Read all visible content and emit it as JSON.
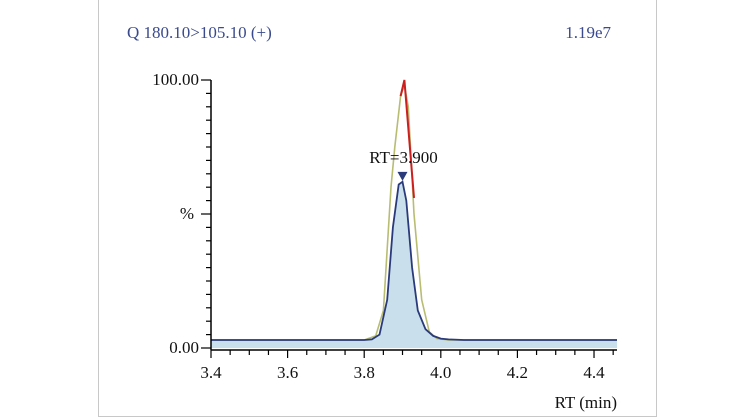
{
  "chart_data": {
    "type": "line",
    "header_left": "Q 180.10>105.10 (+)",
    "header_right": "1.19e7",
    "ylabel": "%",
    "xlabel": "RT (min)",
    "xlim": [
      3.4,
      4.46
    ],
    "ylim": [
      0,
      100
    ],
    "x_ticks": [
      "3.4",
      "3.6",
      "3.8",
      "4.0",
      "4.2",
      "4.4"
    ],
    "x_tick_values": [
      3.4,
      3.6,
      3.8,
      4.0,
      4.2,
      4.4
    ],
    "y_ticks": [
      "0.00",
      "100.00"
    ],
    "y_tick_values": [
      0,
      100
    ],
    "annotation": "RT=3.900",
    "peak_rt": 3.9,
    "colors": {
      "trace": "#2a3a7a",
      "fill": "#c9e0ec",
      "smooth": "#b8bd72",
      "peak_edge": "#cc1f1f",
      "axis": "#000000"
    },
    "series": [
      {
        "role": "detected-trace",
        "x": [
          3.4,
          3.8,
          3.82,
          3.84,
          3.86,
          3.875,
          3.89,
          3.9,
          3.91,
          3.925,
          3.94,
          3.96,
          3.98,
          4.0,
          4.02,
          4.06,
          4.46
        ],
        "y": [
          3,
          3,
          3.2,
          5,
          18,
          45,
          61,
          62,
          55,
          30,
          14,
          7,
          4.5,
          3.5,
          3.2,
          3,
          3
        ]
      },
      {
        "role": "smoothed-trace",
        "x": [
          3.4,
          3.8,
          3.83,
          3.85,
          3.87,
          3.88,
          3.895,
          3.905,
          3.915,
          3.93,
          3.95,
          3.97,
          3.99,
          4.02,
          4.46
        ],
        "y": [
          3,
          3,
          4.5,
          14,
          60,
          75,
          94,
          98,
          90,
          50,
          18,
          6,
          3.5,
          3,
          3
        ]
      },
      {
        "role": "peak-edge",
        "x": [
          3.895,
          3.905,
          3.93
        ],
        "y": [
          94,
          100,
          56
        ]
      }
    ]
  }
}
